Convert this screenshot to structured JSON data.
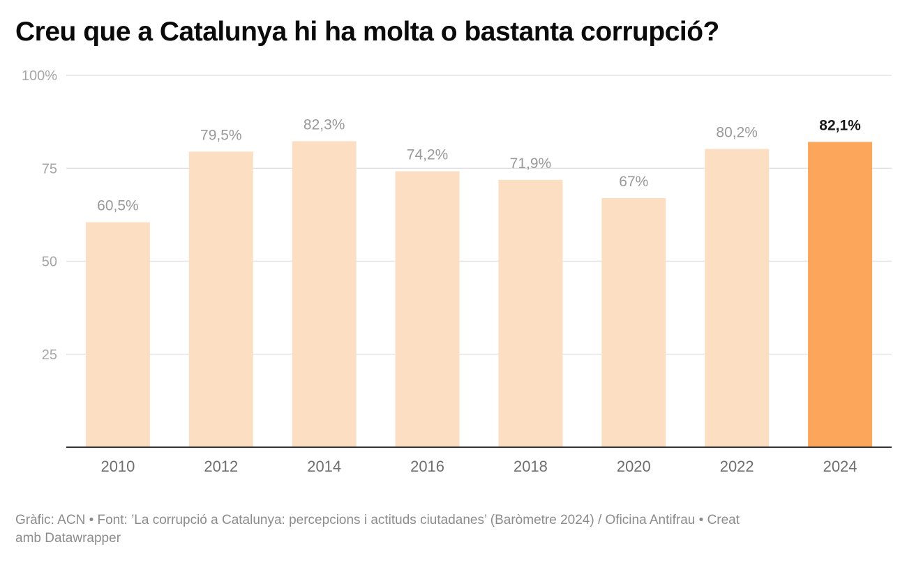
{
  "title": "Creu que a Catalunya hi ha molta o bastanta corrupció?",
  "footer": {
    "line1": "Gràfic: ACN • Font: ’La corrupció a Catalunya: percepcions i actituds ciutadanes’ (Baròmetre 2024) / Oficina Antifrau • Creat",
    "line2": "amb Datawrapper"
  },
  "colors": {
    "bar": "#fcdfc3",
    "highlight_bar": "#fba65b",
    "grid": "#e3e3e3",
    "baseline": "#333333"
  },
  "chart_data": {
    "type": "bar",
    "title": "Creu que a Catalunya hi ha molta o bastanta corrupció?",
    "xlabel": "",
    "ylabel": "",
    "categories": [
      "2010",
      "2012",
      "2014",
      "2016",
      "2018",
      "2020",
      "2022",
      "2024"
    ],
    "values": [
      60.5,
      79.5,
      82.3,
      74.2,
      71.9,
      67,
      80.2,
      82.1
    ],
    "value_labels": [
      "60,5%",
      "79,5%",
      "82,3%",
      "74,2%",
      "71,9%",
      "67%",
      "80,2%",
      "82,1%"
    ],
    "highlight_index": 7,
    "ylim": [
      0,
      100
    ],
    "yticks": [
      25,
      50,
      75,
      100
    ],
    "ytick_labels": [
      "25",
      "50",
      "75",
      "100%"
    ],
    "grid": true,
    "legend": "none"
  }
}
